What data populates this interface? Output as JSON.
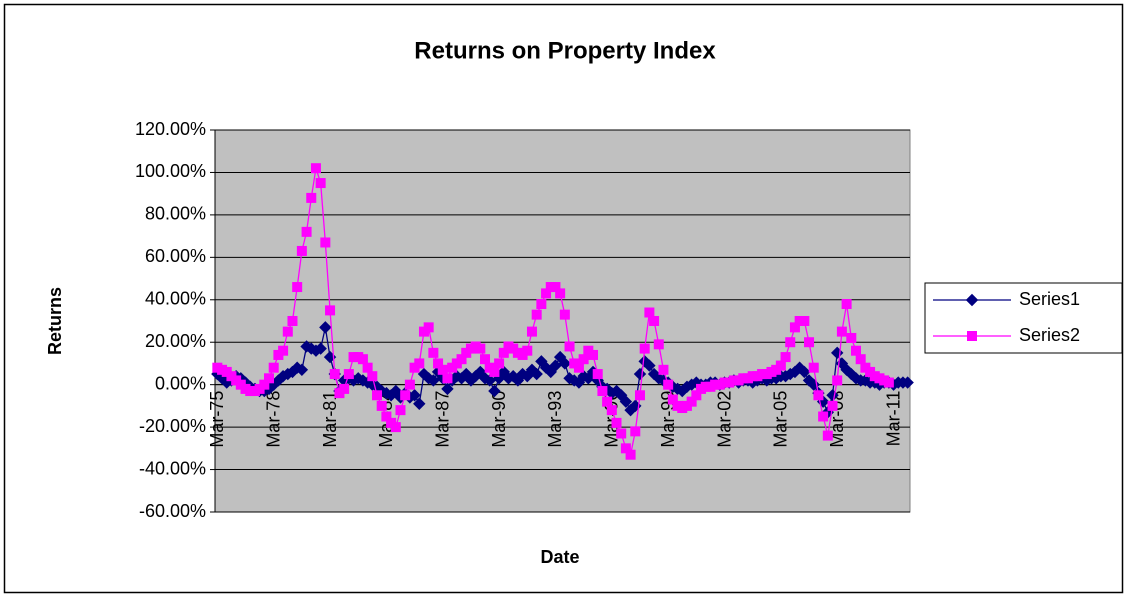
{
  "chart_data": {
    "type": "line",
    "title": "Returns on Property Index",
    "x_label": "Date",
    "y_label": "Returns",
    "categories": [
      "Mar-75",
      null,
      null,
      null,
      null,
      null,
      null,
      null,
      null,
      null,
      null,
      null,
      "Mar-78",
      null,
      null,
      null,
      null,
      null,
      null,
      null,
      null,
      null,
      null,
      null,
      "Mar-81",
      null,
      null,
      null,
      null,
      null,
      null,
      null,
      null,
      null,
      null,
      null,
      "Mar-84",
      null,
      null,
      null,
      null,
      null,
      null,
      null,
      null,
      null,
      null,
      null,
      "Mar-87",
      null,
      null,
      null,
      null,
      null,
      null,
      null,
      null,
      null,
      null,
      null,
      "Mar-90",
      null,
      null,
      null,
      null,
      null,
      null,
      null,
      null,
      null,
      null,
      null,
      "Mar-93",
      null,
      null,
      null,
      null,
      null,
      null,
      null,
      null,
      null,
      null,
      null,
      "Mar-96",
      null,
      null,
      null,
      null,
      null,
      null,
      null,
      null,
      null,
      null,
      null,
      "Mar-99",
      null,
      null,
      null,
      null,
      null,
      null,
      null,
      null,
      null,
      null,
      null,
      "Mar-02",
      null,
      null,
      null,
      null,
      null,
      null,
      null,
      null,
      null,
      null,
      null,
      "Mar-05",
      null,
      null,
      null,
      null,
      null,
      null,
      null,
      null,
      null,
      null,
      null,
      "Mar-08",
      null,
      null,
      null,
      null,
      null,
      null,
      null,
      null,
      null,
      null,
      null,
      "Mar-11",
      null,
      null,
      null
    ],
    "series": [
      {
        "name": "Series1",
        "color": "#000080",
        "marker": "diamond",
        "values": [
          5,
          3,
          1,
          2,
          4,
          3,
          1,
          -1,
          -2,
          -3,
          -3,
          -2,
          0,
          2,
          4,
          5,
          6,
          8,
          7,
          18,
          17,
          16,
          17,
          27,
          13,
          5,
          -3,
          2,
          3,
          2,
          3,
          2,
          1,
          0,
          -1,
          -3,
          -4,
          -5,
          -3,
          -6,
          -4,
          -6,
          -5,
          -9,
          5,
          3,
          2,
          6,
          3,
          -2,
          2,
          4,
          3,
          5,
          2,
          4,
          6,
          3,
          2,
          -3,
          3,
          6,
          3,
          4,
          2,
          5,
          4,
          7,
          5,
          11,
          8,
          6,
          9,
          13,
          10,
          3,
          2,
          1,
          4,
          3,
          6,
          2,
          -1,
          -2,
          -4,
          -3,
          -5,
          -8,
          -12,
          -10,
          5,
          11,
          9,
          5,
          3,
          2,
          1,
          -1,
          -2,
          -3,
          -1,
          0,
          1,
          0,
          0,
          1,
          1,
          0,
          1,
          1,
          2,
          1,
          2,
          2,
          1,
          2,
          3,
          2,
          3,
          3,
          4,
          4,
          5,
          6,
          8,
          6,
          2,
          0,
          -4,
          -8,
          -13,
          -5,
          15,
          10,
          7,
          5,
          3,
          2,
          2,
          1,
          1,
          0,
          1,
          1,
          0,
          1,
          1,
          1
        ]
      },
      {
        "name": "Series2",
        "color": "#ff00ff",
        "marker": "square",
        "values": [
          8,
          7,
          6,
          4,
          2,
          0,
          -2,
          -3,
          -3,
          -2,
          0,
          3,
          8,
          14,
          16,
          25,
          30,
          46,
          63,
          72,
          88,
          102,
          95,
          67,
          35,
          5,
          -4,
          -2,
          5,
          13,
          13,
          12,
          8,
          4,
          -5,
          -10,
          -15,
          -18,
          -20,
          -12,
          -5,
          0,
          8,
          10,
          25,
          27,
          15,
          10,
          7,
          3,
          8,
          10,
          12,
          15,
          17,
          18,
          17,
          12,
          8,
          6,
          10,
          15,
          18,
          17,
          15,
          14,
          16,
          25,
          33,
          38,
          43,
          46,
          46,
          43,
          33,
          18,
          10,
          8,
          12,
          16,
          14,
          5,
          -3,
          -8,
          -12,
          -18,
          -23,
          -30,
          -33,
          -22,
          -5,
          17,
          34,
          30,
          19,
          7,
          0,
          -7,
          -10,
          -11,
          -10,
          -8,
          -5,
          -2,
          -1,
          -1,
          0,
          0,
          1,
          1,
          2,
          2,
          3,
          3,
          4,
          4,
          5,
          5,
          6,
          7,
          9,
          13,
          20,
          27,
          30,
          30,
          20,
          8,
          -5,
          -15,
          -24,
          -10,
          2,
          25,
          38,
          22,
          16,
          12,
          8,
          6,
          4,
          3,
          2,
          1,
          null,
          null,
          null,
          null
        ]
      }
    ],
    "ylim": [
      -60,
      120
    ],
    "yticks": [
      {
        "value": -60,
        "label": "-60.00%"
      },
      {
        "value": -40,
        "label": "-40.00%"
      },
      {
        "value": -20,
        "label": "-20.00%"
      },
      {
        "value": 0,
        "label": "0.00%"
      },
      {
        "value": 20,
        "label": "20.00%"
      },
      {
        "value": 40,
        "label": "40.00%"
      },
      {
        "value": 60,
        "label": "60.00%"
      },
      {
        "value": 80,
        "label": "80.00%"
      },
      {
        "value": 100,
        "label": "100.00%"
      },
      {
        "value": 120,
        "label": "120.00%"
      }
    ],
    "grid": true,
    "plot_background": "#c0c0c0",
    "legend": "right"
  }
}
